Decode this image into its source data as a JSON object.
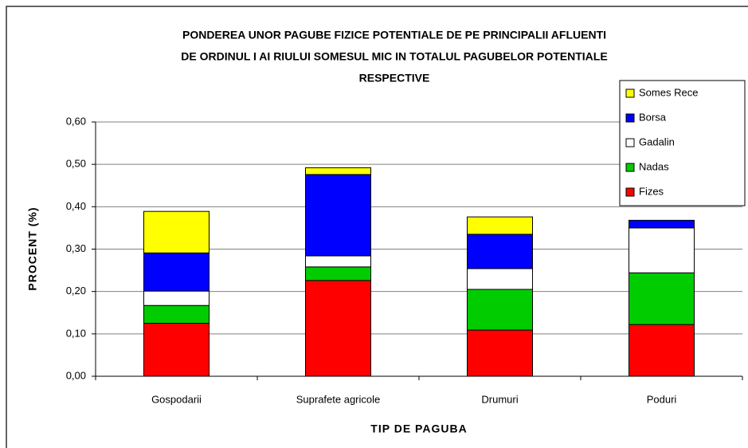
{
  "chart_data": {
    "type": "bar",
    "stacked": true,
    "title": [
      "PONDEREA UNOR PAGUBE FIZICE POTENTIALE DE PE PRINCIPALII AFLUENTI",
      "DE ORDINUL I AI RIULUI SOMESUL MIC IN TOTALUL PAGUBELOR POTENTIALE",
      "RESPECTIVE"
    ],
    "x_label": "TIP DE PAGUBA",
    "y_label": "PROCENT (%)",
    "categories": [
      "Gospodarii",
      "Suprafete agricole",
      "Drumuri",
      "Poduri"
    ],
    "series": [
      {
        "name": "Fizes",
        "color": "#ff0000",
        "values": [
          0.125,
          0.226,
          0.109,
          0.122
        ]
      },
      {
        "name": "Nadas",
        "color": "#00cc00",
        "values": [
          0.042,
          0.032,
          0.096,
          0.122
        ]
      },
      {
        "name": "Gadalin",
        "color": "#ffffff",
        "values": [
          0.034,
          0.026,
          0.049,
          0.106
        ]
      },
      {
        "name": "Borsa",
        "color": "#0000ff",
        "values": [
          0.09,
          0.192,
          0.081,
          0.018
        ]
      },
      {
        "name": "Somes Rece",
        "color": "#ffff00",
        "values": [
          0.098,
          0.016,
          0.041,
          0
        ]
      }
    ],
    "ylim": [
      0,
      0.6
    ],
    "yticks": [
      {
        "value": 0,
        "label": "0,00"
      },
      {
        "value": 0.1,
        "label": "0,10"
      },
      {
        "value": 0.2,
        "label": "0,20"
      },
      {
        "value": 0.3,
        "label": "0,30"
      },
      {
        "value": 0.4,
        "label": "0,40"
      },
      {
        "value": 0.5,
        "label": "0,50"
      },
      {
        "value": 0.6,
        "label": "0,60"
      }
    ],
    "grid": true,
    "legend": "upper right"
  }
}
